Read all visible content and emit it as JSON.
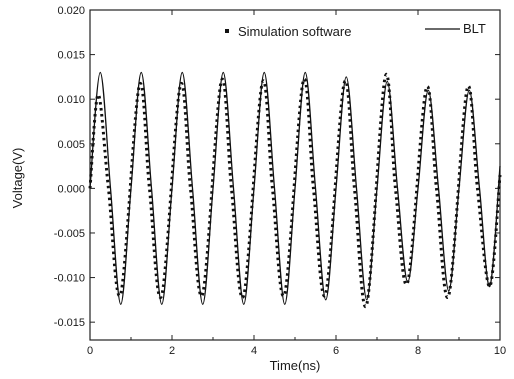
{
  "chart_data": {
    "type": "line",
    "xlabel": "Time(ns)",
    "ylabel": "Voltage(V)",
    "xlim": [
      0,
      10
    ],
    "ylim": [
      -0.017,
      0.02
    ],
    "x_ticks": [
      0,
      2,
      4,
      6,
      8,
      10
    ],
    "x_tick_labels": [
      "0",
      "2",
      "4",
      "6",
      "8",
      "10"
    ],
    "y_ticks": [
      0.02,
      0.015,
      0.01,
      0.005,
      0.0,
      -0.005,
      -0.01,
      -0.015
    ],
    "y_tick_labels": [
      "0.020",
      "0.015",
      "0.010",
      "0.005",
      "0.000",
      "-0.005",
      "-0.010",
      "-0.015"
    ],
    "legend": {
      "position": "top"
    },
    "grid": false,
    "series": [
      {
        "name": "Simulation software",
        "style": "dotted",
        "color": "#111111",
        "x": [
          0.0,
          0.2,
          0.45,
          0.75,
          1.2,
          1.45,
          1.75,
          2.2,
          2.45,
          2.75,
          3.2,
          3.45,
          3.75,
          4.2,
          4.45,
          4.75,
          5.2,
          5.45,
          5.75,
          6.2,
          6.45,
          6.75,
          7.2,
          7.45,
          7.75,
          8.2,
          8.45,
          8.75,
          9.2,
          9.45,
          9.75,
          10.0
        ],
        "y": [
          0.0,
          0.0105,
          0.0,
          -0.0118,
          0.0115,
          0.0,
          -0.012,
          0.0115,
          0.0,
          -0.0118,
          0.012,
          0.0,
          -0.012,
          0.0118,
          0.0,
          -0.0118,
          0.012,
          0.0,
          -0.0118,
          0.0118,
          0.0,
          -0.013,
          0.0125,
          0.0,
          -0.0105,
          0.0112,
          0.0,
          -0.012,
          0.0112,
          0.0,
          -0.011,
          0.0015
        ]
      },
      {
        "name": "BLT",
        "style": "solid",
        "color": "#111111",
        "x": [
          0.0,
          0.25,
          0.5,
          0.75,
          1.0,
          1.25,
          1.5,
          1.75,
          2.0,
          2.25,
          2.5,
          2.75,
          3.0,
          3.25,
          3.5,
          3.75,
          4.0,
          4.25,
          4.5,
          4.75,
          5.0,
          5.25,
          5.5,
          5.75,
          6.0,
          6.25,
          6.5,
          6.75,
          7.0,
          7.25,
          7.5,
          7.75,
          8.0,
          8.25,
          8.5,
          8.75,
          9.0,
          9.25,
          9.5,
          9.75,
          10.0
        ],
        "y": [
          0.0,
          0.013,
          0.0,
          -0.013,
          0.0,
          0.013,
          0.0,
          -0.013,
          0.0,
          0.013,
          0.0,
          -0.013,
          0.0,
          0.013,
          0.0,
          -0.013,
          0.0,
          0.013,
          0.0,
          -0.013,
          0.0,
          0.013,
          0.0,
          -0.0125,
          0.0,
          0.0125,
          0.0,
          -0.0125,
          0.0,
          0.012,
          0.0,
          -0.0105,
          0.0,
          0.011,
          0.0,
          -0.0115,
          0.0,
          0.011,
          0.0,
          -0.011,
          0.0025
        ]
      }
    ]
  }
}
